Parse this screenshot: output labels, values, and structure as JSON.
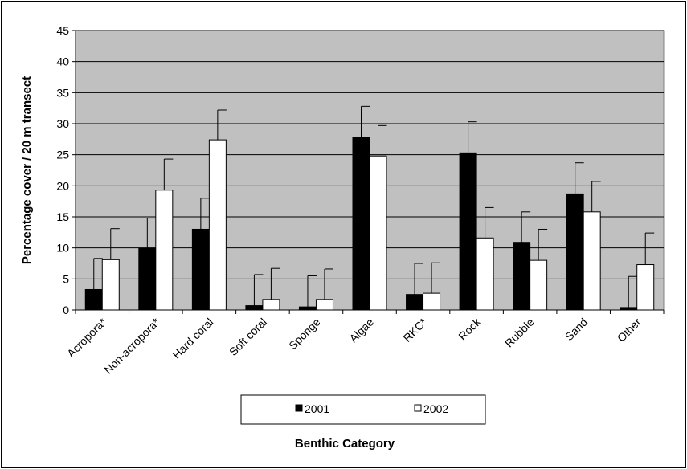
{
  "chart_data": {
    "type": "bar",
    "categories": [
      "Acropora*",
      "Non-acropora*",
      "Hard coral",
      "Soft coral",
      "Sponge",
      "Algae",
      "RKC*",
      "Rock",
      "Rubble",
      "Sand",
      "Other"
    ],
    "series": [
      {
        "name": "2001",
        "values": [
          3.3,
          9.9,
          13.0,
          0.7,
          0.5,
          27.8,
          2.5,
          25.3,
          10.9,
          18.7,
          0.4
        ],
        "errors": [
          5.0,
          4.9,
          5.0,
          5.0,
          5.0,
          5.0,
          5.0,
          5.0,
          4.9,
          5.0,
          5.0
        ],
        "color": "#000000"
      },
      {
        "name": "2002",
        "values": [
          8.1,
          19.3,
          27.4,
          1.7,
          1.7,
          24.8,
          2.7,
          11.6,
          8.0,
          15.8,
          7.3
        ],
        "errors": [
          5.0,
          5.0,
          4.8,
          5.0,
          4.9,
          4.9,
          4.9,
          4.9,
          5.0,
          4.9,
          5.1
        ],
        "color": "#ffffff"
      }
    ],
    "ylim": [
      0,
      45
    ],
    "yticks": [
      "0",
      "5",
      "10",
      "15",
      "20",
      "25",
      "30",
      "35",
      "40",
      "45"
    ],
    "ylabel": "Percentage cover / 20 m transect",
    "xlabel": "Benthic Category",
    "plot_background": "#c0c0c0",
    "grid": true,
    "legend_position": "bottom"
  }
}
